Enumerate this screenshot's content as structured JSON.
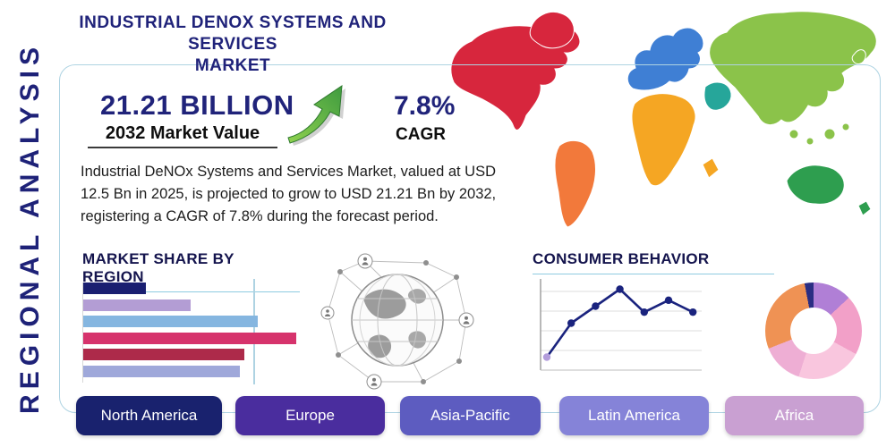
{
  "header": {
    "title_line1": "INDUSTRIAL DENOX SYSTEMS AND SERVICES",
    "title_line2": "MARKET"
  },
  "sidebar": {
    "label": "REGIONAL ANALYSIS"
  },
  "stats": {
    "market_value": "21.21 BILLION",
    "market_value_caption": "2032 Market Value",
    "cagr_value": "7.8%",
    "cagr_caption": "CAGR"
  },
  "description": "Industrial DeNOx Systems and Services Market, valued at USD 12.5 Bn in 2025, is projected to grow to USD 21.21 Bn by 2032, registering a CAGR of 7.8% during the forecast period.",
  "sections": {
    "market_share_title": "MARKET SHARE BY REGION",
    "consumer_behavior_title": "CONSUMER BEHAVIOR"
  },
  "chart_data": [
    {
      "name": "market_share",
      "type": "bar",
      "orientation": "horizontal",
      "title": "Market Share by Region",
      "values": [
        28,
        48,
        78,
        95,
        72,
        70
      ],
      "colors": [
        "#1a1f71",
        "#b39dd4",
        "#85b6e0",
        "#d6336c",
        "#ad2a4a",
        "#9fa8da"
      ],
      "xlim": [
        0,
        100
      ],
      "grid": true,
      "legend": "none"
    },
    {
      "name": "consumer_behavior",
      "type": "line",
      "title": "Consumer Behavior",
      "x": [
        1,
        2,
        3,
        4,
        5,
        6,
        7
      ],
      "values": [
        10,
        50,
        70,
        90,
        63,
        77,
        63
      ],
      "line_color": "#1a237e",
      "first_point_color": "#b39ddb",
      "ylim": [
        0,
        100
      ],
      "grid": true,
      "legend": "none"
    },
    {
      "name": "regional_split",
      "type": "pie",
      "title": "Regional split donut",
      "slices": [
        {
          "value": 13,
          "color": "#b07fd6"
        },
        {
          "value": 20,
          "color": "#f2a0c8"
        },
        {
          "value": 22,
          "color": "#f9c6de"
        },
        {
          "value": 14,
          "color": "#eeaed4"
        },
        {
          "value": 28,
          "color": "#ef9254"
        },
        {
          "value": 3,
          "color": "#2b2e83"
        }
      ],
      "legend": "none"
    }
  ],
  "regions": [
    {
      "label": "North America",
      "color": "#19226e"
    },
    {
      "label": "Europe",
      "color": "#4a2d9e"
    },
    {
      "label": "Asia-Pacific",
      "color": "#5d5cc0"
    },
    {
      "label": "Latin America",
      "color": "#8583d8"
    },
    {
      "label": "Africa",
      "color": "#c9a0d2"
    }
  ],
  "map_colors": {
    "north_america": "#d7263d",
    "greenland": "#d7263d",
    "south_america": "#f2793b",
    "europe": "#3f7fd4",
    "africa": "#f5a623",
    "middle_east": "#26a69a",
    "asia": "#8bc34a",
    "australia": "#2e9e4f"
  },
  "accent": {
    "navy": "#20237a",
    "underline_blue": "#8ecbe0",
    "arrow_green": "#5aa832"
  }
}
